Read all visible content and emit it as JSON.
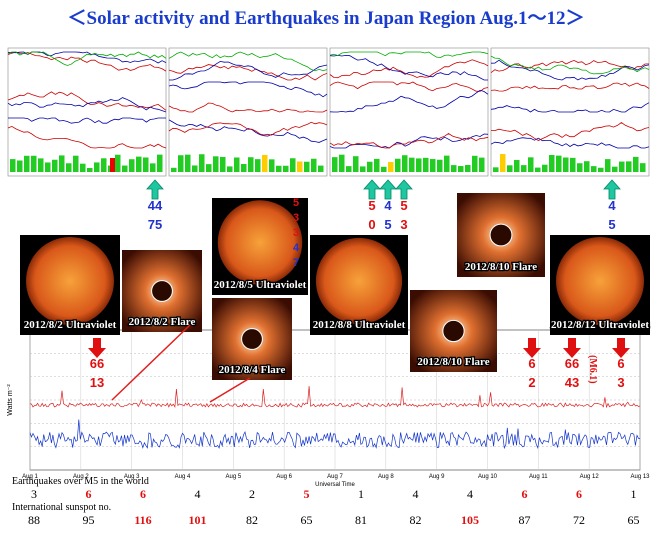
{
  "header": {
    "title": "＜Solar activity and Earthquakes in Japan Region Aug.1～12＞"
  },
  "images": [
    {
      "kind": "sun",
      "caption": "2012/8/2 Ultraviolet"
    },
    {
      "kind": "flare",
      "caption": "2012/8/2 Flare"
    },
    {
      "kind": "sun",
      "caption": "2012/8/5 Ultraviolet"
    },
    {
      "kind": "flare",
      "caption": "2012/8/4 Flare"
    },
    {
      "kind": "sun",
      "caption": "2012/8/8 Ultraviolet"
    },
    {
      "kind": "flare",
      "caption": "2012/8/10 Flare"
    },
    {
      "kind": "flare",
      "caption": "2012/8/10 Flare"
    },
    {
      "kind": "sun",
      "caption": "2012/8/12 Ultraviolet"
    }
  ],
  "markers": [
    {
      "arrow": "green",
      "numbers": [
        {
          "text": "44",
          "color": "#2233cc"
        },
        {
          "text": "75",
          "color": "#2233cc"
        }
      ]
    },
    {
      "arrow": "none",
      "numbers": [
        {
          "text": "5",
          "color": "#e01010"
        },
        {
          "text": "3",
          "color": "#e01010"
        },
        {
          "text": "3",
          "color": "#e01010"
        },
        {
          "text": "4",
          "color": "#2233cc"
        },
        {
          "text": "7",
          "color": "#2233cc"
        }
      ]
    },
    {
      "arrow": "green",
      "numbers": [
        {
          "text": "5",
          "color": "#e01010"
        },
        {
          "text": "0",
          "color": "#e01010"
        }
      ]
    },
    {
      "arrow": "green",
      "numbers": [
        {
          "text": "4",
          "color": "#2233cc"
        },
        {
          "text": "5",
          "color": "#2233cc"
        }
      ]
    },
    {
      "arrow": "green",
      "numbers": [
        {
          "text": "5",
          "color": "#e01010"
        },
        {
          "text": "3",
          "color": "#e01010"
        }
      ]
    },
    {
      "arrow": "green",
      "numbers": [
        {
          "text": "4",
          "color": "#2233cc"
        },
        {
          "text": "5",
          "color": "#2233cc"
        }
      ]
    },
    {
      "arrow": "red",
      "numbers": [
        {
          "text": "66",
          "color": "#e01010"
        },
        {
          "text": "13",
          "color": "#e01010"
        }
      ]
    },
    {
      "arrow": "red",
      "numbers": [
        {
          "text": "6",
          "color": "#e01010"
        },
        {
          "text": "2",
          "color": "#e01010"
        }
      ]
    },
    {
      "arrow": "red",
      "numbers": [
        {
          "text": "66",
          "color": "#e01010"
        },
        {
          "text": "43",
          "color": "#e01010"
        }
      ]
    },
    {
      "arrow": "red",
      "numbers": [
        {
          "text": "6",
          "color": "#e01010"
        },
        {
          "text": "3",
          "color": "#e01010"
        }
      ]
    }
  ],
  "note": "(M6.1)",
  "plot": {
    "ylabel": "Watts m⁻²",
    "xlabel": "Universal Time",
    "days": [
      "Aug 1",
      "Aug 2",
      "Aug 3",
      "Aug 4",
      "Aug 5",
      "Aug 6",
      "Aug 7",
      "Aug 8",
      "Aug 9",
      "Aug 10",
      "Aug 11",
      "Aug 12",
      "Aug 13"
    ]
  },
  "earthquakes": {
    "label": "Earthquakes over M5 in the world",
    "values": [
      "3",
      "6",
      "6",
      "4",
      "2",
      "5",
      "1",
      "4",
      "4",
      "6",
      "6",
      "1"
    ],
    "colors": [
      "#000",
      "#e01010",
      "#e01010",
      "#000",
      "#000",
      "#e01010",
      "#000",
      "#000",
      "#000",
      "#e01010",
      "#e01010",
      "#000"
    ]
  },
  "sunspots": {
    "label": "International sunspot no.",
    "values": [
      "88",
      "95",
      "116",
      "101",
      "82",
      "65",
      "81",
      "82",
      "105",
      "87",
      "72",
      "65"
    ],
    "colors": [
      "#000",
      "#000",
      "#e01010",
      "#e01010",
      "#000",
      "#000",
      "#000",
      "#000",
      "#e01010",
      "#000",
      "#000",
      "#000"
    ]
  }
}
